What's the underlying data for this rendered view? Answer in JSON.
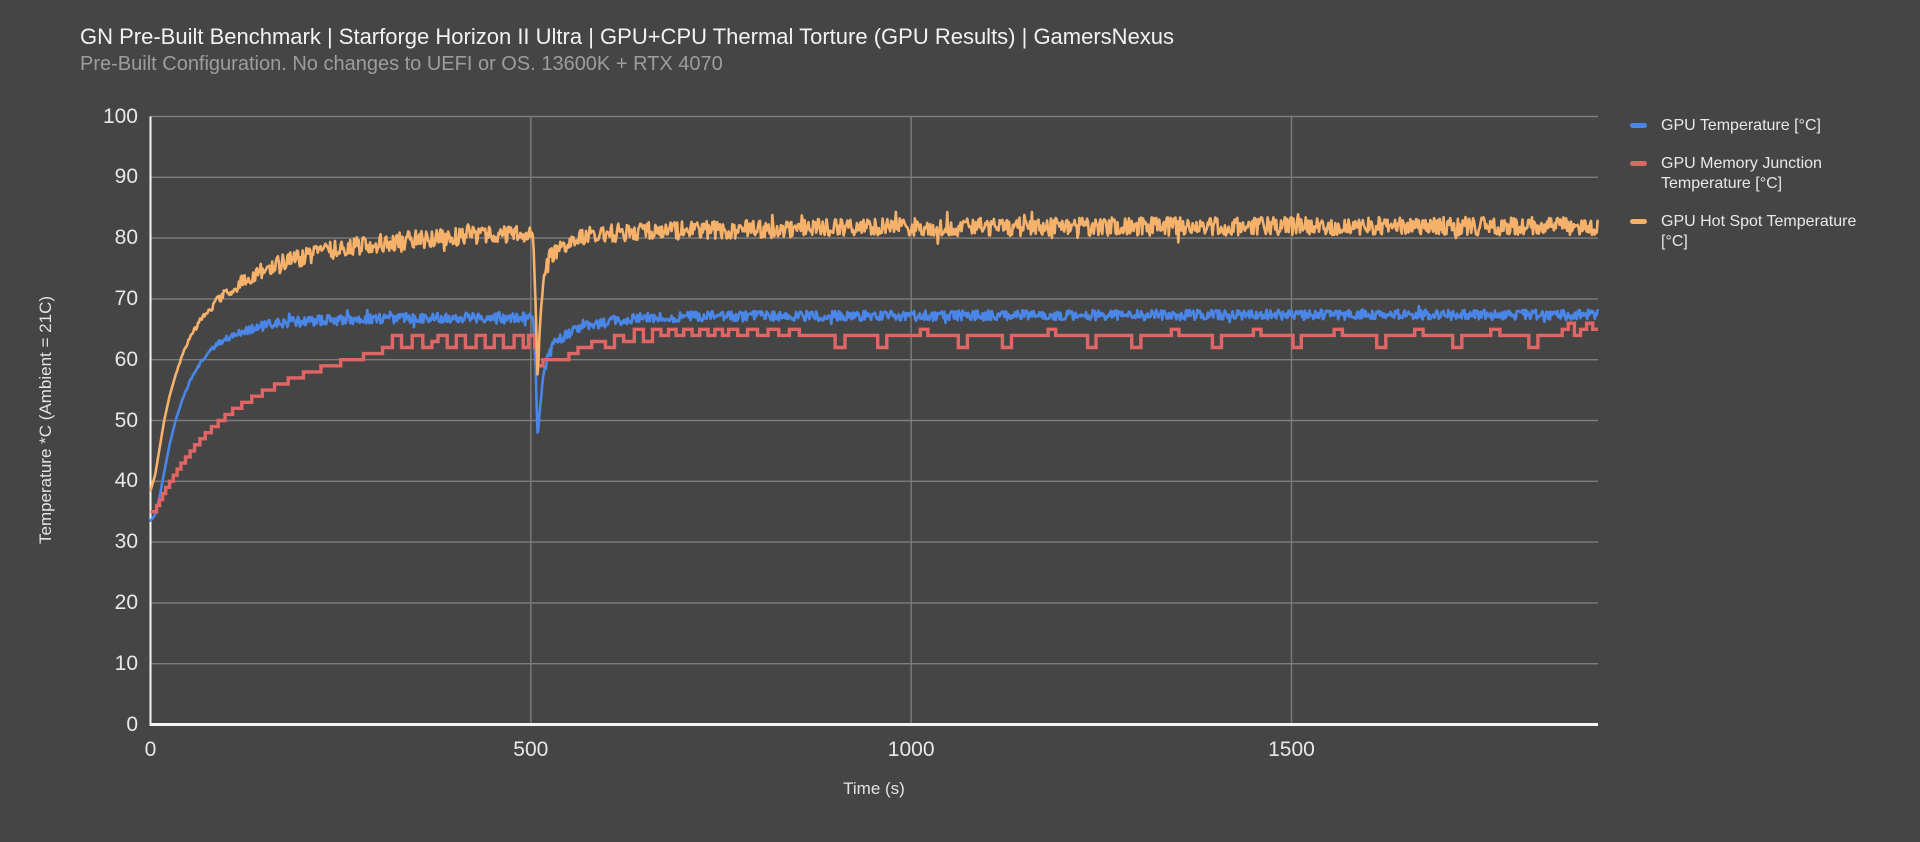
{
  "chart_data": {
    "type": "line",
    "title": "GN Pre-Built Benchmark | Starforge Horizon II Ultra | GPU+CPU Thermal Torture (GPU Results) | GamersNexus",
    "subtitle": "Pre-Built Configuration. No changes to UEFI or OS. 13600K + RTX 4070",
    "xlabel": "Time (s)",
    "ylabel": "Temperature *C (Ambient = 21C)",
    "xlim": [
      0,
      1903
    ],
    "ylim": [
      0,
      100
    ],
    "x_ticks": [
      0,
      500,
      1000,
      1500
    ],
    "y_ticks": [
      0,
      10,
      20,
      30,
      40,
      50,
      60,
      70,
      80,
      90,
      100
    ],
    "grid": true,
    "legend_position": "right",
    "background_color": "#454545",
    "gridline_color": "#7d7d7d",
    "axis_color": "#f5f5f5",
    "tick_color": "#e8e8e8",
    "title_color": "#f2f2f2",
    "subtitle_color": "#9d9d9d",
    "series": [
      {
        "name": "GPU Temperature [°C]",
        "color": "#4a86e8",
        "style": "noisy-line",
        "noise": 0.85,
        "keypoints": [
          [
            0,
            33.5
          ],
          [
            6,
            34.5
          ],
          [
            12,
            37.5
          ],
          [
            18,
            41.5
          ],
          [
            25,
            46
          ],
          [
            33,
            50
          ],
          [
            42,
            53.5
          ],
          [
            52,
            56.5
          ],
          [
            63,
            59
          ],
          [
            75,
            61
          ],
          [
            90,
            62.8
          ],
          [
            108,
            64
          ],
          [
            130,
            65
          ],
          [
            155,
            65.7
          ],
          [
            185,
            66.2
          ],
          [
            225,
            66.5
          ],
          [
            280,
            66.7
          ],
          [
            350,
            66.9
          ],
          [
            430,
            67
          ],
          [
            503,
            67
          ],
          [
            506,
            60
          ],
          [
            509,
            47
          ],
          [
            512,
            52
          ],
          [
            516,
            57
          ],
          [
            522,
            60.5
          ],
          [
            532,
            62.8
          ],
          [
            548,
            64.3
          ],
          [
            570,
            65.4
          ],
          [
            600,
            66.2
          ],
          [
            640,
            66.8
          ],
          [
            700,
            67.1
          ],
          [
            900,
            67.2
          ],
          [
            1200,
            67.3
          ],
          [
            1600,
            67.4
          ],
          [
            1903,
            67.4
          ]
        ]
      },
      {
        "name": "GPU Memory Junction Temperature [°C]",
        "color": "#e06666",
        "style": "step",
        "noise": 0,
        "keypoints": [
          [
            0,
            35
          ],
          [
            5,
            35
          ],
          [
            8,
            36
          ],
          [
            12,
            37
          ],
          [
            16,
            38
          ],
          [
            20,
            39
          ],
          [
            25,
            40
          ],
          [
            30,
            41
          ],
          [
            35,
            42
          ],
          [
            40,
            43
          ],
          [
            46,
            44
          ],
          [
            52,
            45
          ],
          [
            58,
            46
          ],
          [
            65,
            47
          ],
          [
            72,
            48
          ],
          [
            80,
            49
          ],
          [
            89,
            50
          ],
          [
            98,
            51
          ],
          [
            108,
            52
          ],
          [
            120,
            53
          ],
          [
            133,
            54
          ],
          [
            147,
            55
          ],
          [
            163,
            56
          ],
          [
            181,
            57
          ],
          [
            201,
            58
          ],
          [
            224,
            59
          ],
          [
            250,
            60
          ],
          [
            280,
            61
          ],
          [
            305,
            62
          ],
          [
            318,
            64
          ],
          [
            330,
            62
          ],
          [
            344,
            64
          ],
          [
            358,
            62
          ],
          [
            370,
            63
          ],
          [
            378,
            64
          ],
          [
            390,
            62
          ],
          [
            402,
            64
          ],
          [
            414,
            62
          ],
          [
            428,
            64
          ],
          [
            440,
            62
          ],
          [
            452,
            64
          ],
          [
            464,
            62
          ],
          [
            478,
            64
          ],
          [
            490,
            62
          ],
          [
            497,
            64
          ],
          [
            505,
            62
          ],
          [
            509,
            59
          ],
          [
            516,
            60
          ],
          [
            550,
            61
          ],
          [
            562,
            62
          ],
          [
            580,
            63
          ],
          [
            598,
            62
          ],
          [
            610,
            64
          ],
          [
            622,
            63
          ],
          [
            636,
            65
          ],
          [
            648,
            63
          ],
          [
            660,
            65
          ],
          [
            671,
            64
          ],
          [
            681,
            65
          ],
          [
            691,
            64
          ],
          [
            701,
            65
          ],
          [
            712,
            64
          ],
          [
            722,
            65
          ],
          [
            733,
            64
          ],
          [
            742,
            65
          ],
          [
            752,
            64
          ],
          [
            760,
            65
          ],
          [
            772,
            64
          ],
          [
            785,
            65
          ],
          [
            798,
            64
          ],
          [
            812,
            65
          ],
          [
            826,
            64
          ],
          [
            840,
            65
          ],
          [
            853,
            64
          ],
          [
            900,
            62
          ],
          [
            913,
            64
          ],
          [
            956,
            62
          ],
          [
            968,
            64
          ],
          [
            1012,
            65
          ],
          [
            1022,
            64
          ],
          [
            1062,
            62
          ],
          [
            1074,
            64
          ],
          [
            1120,
            62
          ],
          [
            1132,
            64
          ],
          [
            1180,
            65
          ],
          [
            1190,
            64
          ],
          [
            1232,
            62
          ],
          [
            1243,
            64
          ],
          [
            1290,
            62
          ],
          [
            1302,
            64
          ],
          [
            1342,
            65
          ],
          [
            1352,
            64
          ],
          [
            1396,
            62
          ],
          [
            1408,
            64
          ],
          [
            1450,
            65
          ],
          [
            1460,
            64
          ],
          [
            1502,
            62
          ],
          [
            1513,
            64
          ],
          [
            1556,
            65
          ],
          [
            1567,
            64
          ],
          [
            1612,
            62
          ],
          [
            1624,
            64
          ],
          [
            1662,
            65
          ],
          [
            1673,
            64
          ],
          [
            1712,
            62
          ],
          [
            1724,
            64
          ],
          [
            1762,
            65
          ],
          [
            1774,
            64
          ],
          [
            1812,
            62
          ],
          [
            1824,
            64
          ],
          [
            1856,
            65
          ],
          [
            1864,
            66
          ],
          [
            1872,
            64
          ],
          [
            1880,
            65
          ],
          [
            1888,
            66
          ],
          [
            1896,
            65
          ],
          [
            1903,
            65
          ]
        ]
      },
      {
        "name": "GPU Hot Spot Temperature [°C]",
        "color": "#f6b26b",
        "style": "noisy-line",
        "noise": 1.5,
        "keypoints": [
          [
            0,
            38.5
          ],
          [
            6,
            41
          ],
          [
            12,
            45.5
          ],
          [
            18,
            50
          ],
          [
            25,
            54
          ],
          [
            33,
            57.5
          ],
          [
            42,
            60.8
          ],
          [
            52,
            63.6
          ],
          [
            63,
            66
          ],
          [
            75,
            68
          ],
          [
            90,
            70
          ],
          [
            108,
            71.8
          ],
          [
            130,
            73.5
          ],
          [
            155,
            75
          ],
          [
            185,
            76.4
          ],
          [
            225,
            77.7
          ],
          [
            280,
            78.9
          ],
          [
            350,
            79.8
          ],
          [
            430,
            80.5
          ],
          [
            503,
            80.8
          ],
          [
            506,
            70
          ],
          [
            509,
            56.5
          ],
          [
            512,
            66
          ],
          [
            517,
            73.5
          ],
          [
            526,
            77
          ],
          [
            542,
            79
          ],
          [
            570,
            80.3
          ],
          [
            620,
            81
          ],
          [
            700,
            81.3
          ],
          [
            900,
            81.7
          ],
          [
            1200,
            81.9
          ],
          [
            1903,
            82
          ]
        ]
      }
    ]
  }
}
